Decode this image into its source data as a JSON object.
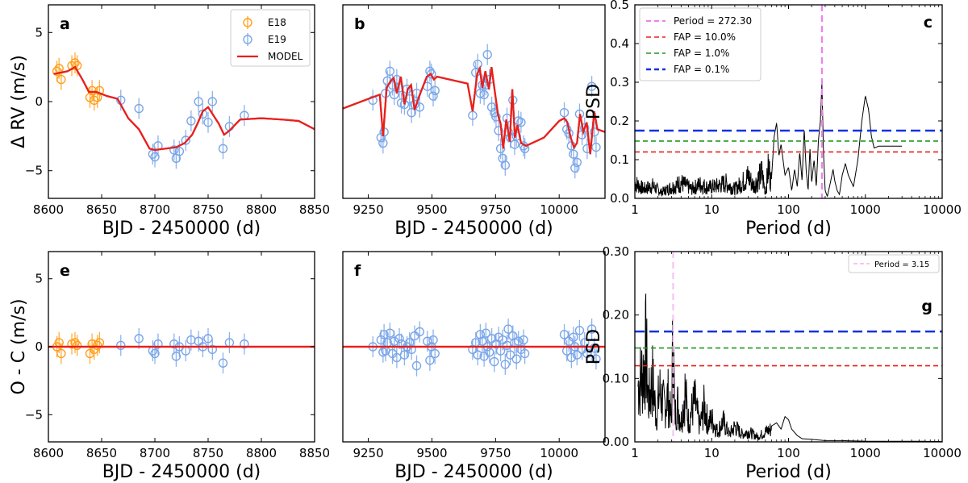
{
  "chart_data": [
    {
      "id": "a",
      "type": "scatter",
      "panel_label": "a",
      "xlabel": "BJD - 2450000 (d)",
      "ylabel": "Δ RV (m/s)",
      "xlim": [
        8600,
        8850
      ],
      "ylim": [
        -7,
        7
      ],
      "xticks": [
        8600,
        8650,
        8700,
        8750,
        8800,
        8850
      ],
      "yticks": [
        -5,
        0,
        5
      ],
      "legend_position": "top-right",
      "series": [
        {
          "name": "E18",
          "color": "#ff9f1c",
          "x": [
            8608,
            8610,
            8612,
            8622,
            8625,
            8627,
            8639,
            8641,
            8643,
            8646,
            8648
          ],
          "y": [
            2.2,
            2.4,
            1.6,
            2.6,
            2.8,
            2.6,
            0.3,
            0.8,
            0.1,
            0.3,
            0.8
          ]
        },
        {
          "name": "E19",
          "color": "#7aa6e8",
          "x": [
            8668,
            8685,
            8698,
            8700,
            8703,
            8718,
            8720,
            8723,
            8729,
            8734,
            8741,
            8745,
            8750,
            8754,
            8764,
            8770,
            8784
          ],
          "y": [
            0.1,
            -0.5,
            -3.8,
            -4.0,
            -3.2,
            -3.5,
            -4.1,
            -3.6,
            -2.8,
            -1.4,
            0.0,
            -0.9,
            -1.5,
            0.0,
            -3.4,
            -1.8,
            -1.0
          ]
        },
        {
          "name": "MODEL",
          "color": "#e8201c",
          "x": [
            8605,
            8612,
            8618,
            8625,
            8632,
            8638,
            8645,
            8655,
            8665,
            8675,
            8685,
            8695,
            8700,
            8710,
            8720,
            8728,
            8735,
            8740,
            8745,
            8750,
            8755,
            8760,
            8765,
            8770,
            8780,
            8800,
            8820,
            8835,
            8850
          ],
          "y": [
            2.0,
            2.1,
            2.2,
            2.5,
            1.6,
            0.7,
            0.7,
            0.4,
            0.2,
            -1.2,
            -2.0,
            -3.4,
            -3.5,
            -3.4,
            -3.3,
            -3.0,
            -2.4,
            -1.6,
            -0.7,
            -0.4,
            -1.0,
            -1.6,
            -2.4,
            -2.1,
            -1.3,
            -1.2,
            -1.3,
            -1.4,
            -2.0
          ]
        }
      ]
    },
    {
      "id": "b",
      "type": "scatter",
      "panel_label": "b",
      "xlabel": "BJD - 2450000 (d)",
      "ylabel": "",
      "xlim": [
        9150,
        10180
      ],
      "ylim": [
        -7,
        7
      ],
      "xticks": [
        9250,
        9500,
        9750,
        10000
      ],
      "series": [
        {
          "name": "E19",
          "color": "#7aa6e8",
          "x": [
            9268,
            9300,
            9308,
            9312,
            9318,
            9325,
            9335,
            9345,
            9352,
            9362,
            9372,
            9380,
            9392,
            9402,
            9412,
            9420,
            9432,
            9440,
            9452,
            9482,
            9492,
            9498,
            9505,
            9512,
            9660,
            9672,
            9680,
            9690,
            9698,
            9705,
            9712,
            9718,
            9726,
            9735,
            9745,
            9752,
            9762,
            9770,
            9778,
            9788,
            9795,
            9800,
            9808,
            9818,
            9825,
            9832,
            9840,
            9850,
            9860,
            9865,
            10020,
            10030,
            10038,
            10048,
            10056,
            10062,
            10070,
            10080,
            10090,
            10100,
            10110,
            10128,
            10138,
            10145
          ],
          "y": [
            0.1,
            -2.6,
            -3.0,
            -2.2,
            0.6,
            1.5,
            2.2,
            1.2,
            0.5,
            1.6,
            1.0,
            -0.1,
            -0.2,
            0.9,
            0.2,
            -0.8,
            -0.2,
            0.6,
            -0.4,
            1.1,
            2.2,
            2.0,
            0.4,
            0.8,
            -1.0,
            2.1,
            2.7,
            0.6,
            1.2,
            0.5,
            1.2,
            3.4,
            1.6,
            -0.4,
            -0.8,
            -1.1,
            -2.1,
            -3.4,
            -4.1,
            -4.6,
            -1.2,
            -2.2,
            -2.6,
            0.1,
            -3.1,
            -2.5,
            -1.4,
            -1.5,
            -3.2,
            -3.4,
            -0.8,
            -2.0,
            -2.3,
            -3.2,
            -3.8,
            -4.8,
            -4.4,
            -0.9,
            -2.4,
            -1.9,
            -3.4,
            1.1,
            -2.2,
            -3.3
          ]
        },
        {
          "name": "MODEL",
          "color": "#e8201c",
          "x": [
            9150,
            9250,
            9295,
            9308,
            9322,
            9338,
            9350,
            9362,
            9378,
            9392,
            9405,
            9418,
            9432,
            9450,
            9480,
            9495,
            9508,
            9520,
            9640,
            9660,
            9678,
            9688,
            9698,
            9710,
            9724,
            9734,
            9748,
            9760,
            9770,
            9780,
            9792,
            9806,
            9816,
            9826,
            9836,
            9850,
            9870,
            9940,
            10000,
            10020,
            10032,
            10045,
            10058,
            10070,
            10082,
            10095,
            10108,
            10122,
            10138,
            10150,
            10180
          ],
          "y": [
            -0.5,
            0.2,
            0.5,
            -2.5,
            1.0,
            1.5,
            1.7,
            0.6,
            1.8,
            -0.2,
            0.9,
            1.2,
            -0.6,
            0.4,
            1.8,
            2.0,
            1.6,
            1.8,
            1.3,
            -0.7,
            2.0,
            2.4,
            1.0,
            2.2,
            0.9,
            2.5,
            0.6,
            -1.0,
            -1.6,
            -3.4,
            -1.3,
            -2.9,
            0.9,
            -2.6,
            -1.7,
            -3.0,
            -3.2,
            -2.6,
            -1.4,
            -1.2,
            -1.5,
            -2.6,
            -3.3,
            -3.0,
            -0.9,
            -2.2,
            -1.5,
            -3.8,
            -0.7,
            -2.0,
            -2.2
          ]
        }
      ]
    },
    {
      "id": "c",
      "type": "line",
      "panel_label": "c",
      "xlabel": "Period (d)",
      "ylabel": "PSD",
      "xscale": "log",
      "xlim": [
        1,
        10000
      ],
      "ylim": [
        0,
        0.5
      ],
      "xticks": [
        1,
        10,
        100,
        1000,
        10000
      ],
      "yticks": [
        0.0,
        0.1,
        0.2,
        0.3,
        0.4,
        0.5
      ],
      "legend_position": "top-left",
      "legend": [
        {
          "label": "Period = 272.30",
          "color": "#ee82ee"
        },
        {
          "label": "FAP = 10.0%",
          "color": "#e8201c"
        },
        {
          "label": "FAP =  1.0%",
          "color": "#1f9a1f"
        },
        {
          "label": "FAP =  0.1%",
          "color": "#1432dc"
        }
      ],
      "vline_period": 272.3,
      "fap_levels": [
        {
          "fap": "10.0%",
          "value": 0.12,
          "color": "#e8201c"
        },
        {
          "fap": "1.0%",
          "value": 0.148,
          "color": "#1f9a1f"
        },
        {
          "fap": "0.1%",
          "value": 0.175,
          "color": "#1432dc"
        }
      ],
      "spectrum": {
        "x": [
          1,
          1.3,
          1.7,
          2.2,
          3,
          4,
          5.5,
          7,
          9,
          12,
          15,
          20,
          25,
          30,
          35,
          40,
          45,
          50,
          55,
          60,
          65,
          70,
          75,
          80,
          90,
          100,
          110,
          120,
          130,
          140,
          150,
          160,
          170,
          180,
          190,
          200,
          215,
          230,
          245,
          260,
          272,
          285,
          300,
          320,
          350,
          380,
          400,
          430,
          460,
          500,
          550,
          600,
          700,
          800,
          900,
          1000,
          1100,
          1200,
          1300,
          1500,
          2000,
          3000
        ],
        "y": [
          0.05,
          0.03,
          0.04,
          0.02,
          0.035,
          0.05,
          0.03,
          0.045,
          0.035,
          0.04,
          0.05,
          0.03,
          0.05,
          0.07,
          0.04,
          0.06,
          0.08,
          0.02,
          0.1,
          0.05,
          0.16,
          0.195,
          0.11,
          0.14,
          0.06,
          0.08,
          0.02,
          0.075,
          0.03,
          0.12,
          0.045,
          0.18,
          0.07,
          0.02,
          0.13,
          0.04,
          0.1,
          0.03,
          0.15,
          0.2,
          0.3,
          0.12,
          0.02,
          0.005,
          0.04,
          0.075,
          0.045,
          0.02,
          0.01,
          0.06,
          0.09,
          0.06,
          0.03,
          0.1,
          0.2,
          0.265,
          0.23,
          0.16,
          0.13,
          0.135,
          0.135,
          0.135
        ]
      }
    },
    {
      "id": "e",
      "type": "scatter",
      "panel_label": "e",
      "xlabel": "BJD - 2450000 (d)",
      "ylabel": "O - C (m/s)",
      "xlim": [
        8600,
        8850
      ],
      "ylim": [
        -7,
        7
      ],
      "xticks": [
        8600,
        8650,
        8700,
        8750,
        8800,
        8850
      ],
      "yticks": [
        -5,
        0,
        5
      ],
      "series": [
        {
          "name": "E18",
          "color": "#ff9f1c",
          "x": [
            8608,
            8610,
            8612,
            8622,
            8625,
            8627,
            8639,
            8641,
            8643,
            8646,
            8648
          ],
          "y": [
            0.0,
            0.3,
            -0.5,
            0.2,
            0.3,
            0.1,
            -0.5,
            0.2,
            -0.2,
            0.1,
            0.3
          ]
        },
        {
          "name": "E19",
          "color": "#7aa6e8",
          "x": [
            8668,
            8685,
            8698,
            8700,
            8703,
            8718,
            8720,
            8723,
            8729,
            8734,
            8741,
            8745,
            8750,
            8754,
            8764,
            8770,
            8784
          ],
          "y": [
            0.1,
            0.6,
            -0.3,
            -0.5,
            0.2,
            0.2,
            -0.7,
            0.0,
            -0.3,
            0.5,
            0.4,
            0.0,
            0.6,
            -0.2,
            -1.2,
            0.3,
            0.2
          ]
        },
        {
          "name": "MODEL",
          "color": "#e8201c",
          "x": [
            8600,
            8850
          ],
          "y": [
            0,
            0
          ]
        }
      ]
    },
    {
      "id": "f",
      "type": "scatter",
      "panel_label": "f",
      "xlabel": "BJD - 2450000 (d)",
      "ylabel": "",
      "xlim": [
        9150,
        10180
      ],
      "ylim": [
        -7,
        7
      ],
      "xticks": [
        9250,
        9500,
        9750,
        10000
      ],
      "series": [
        {
          "name": "E19",
          "color": "#7aa6e8",
          "x": [
            9268,
            9300,
            9308,
            9312,
            9318,
            9325,
            9335,
            9345,
            9352,
            9362,
            9372,
            9380,
            9392,
            9402,
            9412,
            9420,
            9432,
            9440,
            9452,
            9482,
            9492,
            9498,
            9505,
            9512,
            9660,
            9672,
            9680,
            9690,
            9698,
            9705,
            9712,
            9718,
            9726,
            9735,
            9745,
            9752,
            9762,
            9770,
            9778,
            9788,
            9795,
            9800,
            9808,
            9818,
            9825,
            9832,
            9840,
            9850,
            9860,
            9865,
            10020,
            10030,
            10038,
            10048,
            10056,
            10062,
            10070,
            10080,
            10090,
            10100,
            10110,
            10128,
            10138,
            10145
          ],
          "y": [
            0.0,
            0.5,
            -0.4,
            0.9,
            -0.3,
            0.3,
            1.0,
            -0.5,
            0.4,
            -0.8,
            0.6,
            0.2,
            -0.6,
            0.0,
            0.3,
            -0.2,
            0.8,
            -1.4,
            1.1,
            0.4,
            -1.0,
            0.0,
            0.5,
            -0.5,
            -0.2,
            0.3,
            -0.6,
            0.9,
            0.4,
            -0.7,
            1.0,
            0.0,
            -0.4,
            0.6,
            -1.1,
            0.2,
            0.7,
            -0.3,
            0.5,
            -1.3,
            0.1,
            1.3,
            -0.6,
            0.8,
            0.3,
            -0.9,
            0.4,
            -0.2,
            0.5,
            -0.5,
            0.9,
            -0.3,
            0.4,
            -0.8,
            0.7,
            0.0,
            -0.6,
            1.2,
            -0.2,
            0.3,
            -0.5,
            1.3,
            -0.1,
            -0.9
          ]
        },
        {
          "name": "MODEL",
          "color": "#e8201c",
          "x": [
            9150,
            10180
          ],
          "y": [
            0,
            0
          ]
        }
      ]
    },
    {
      "id": "g",
      "type": "line",
      "panel_label": "g",
      "xlabel": "Period (d)",
      "ylabel": "PSD",
      "xscale": "log",
      "xlim": [
        1,
        10000
      ],
      "ylim": [
        0,
        0.3
      ],
      "xticks": [
        1,
        10,
        100,
        1000,
        10000
      ],
      "yticks": [
        0.0,
        0.1,
        0.2,
        0.3
      ],
      "ytick_labels": [
        "0.00",
        "0.10",
        "0.20",
        "0.30"
      ],
      "legend_position": "top-right",
      "legend": [
        {
          "label": "Period = 3.15",
          "color": "#f4c6f0"
        }
      ],
      "vline_period": 3.15,
      "fap_levels": [
        {
          "fap": "10.0%",
          "value": 0.12,
          "color": "#e8201c"
        },
        {
          "fap": "1.0%",
          "value": 0.148,
          "color": "#1f9a1f"
        },
        {
          "fap": "0.1%",
          "value": 0.174,
          "color": "#1432dc"
        }
      ],
      "spectrum": {
        "x": [
          1.1,
          1.3,
          1.4,
          1.5,
          1.7,
          1.9,
          2.1,
          2.4,
          2.7,
          3.0,
          3.15,
          3.3,
          3.6,
          4.0,
          4.5,
          5,
          6,
          7,
          8,
          9,
          10,
          12,
          14,
          17,
          20,
          25,
          30,
          40,
          50,
          60,
          70,
          80,
          90,
          100,
          110,
          130,
          150,
          200,
          300,
          500,
          1000,
          2000,
          5000,
          10000
        ],
        "y": [
          0.11,
          0.14,
          0.182,
          0.08,
          0.12,
          0.05,
          0.1,
          0.07,
          0.09,
          0.04,
          0.23,
          0.05,
          0.075,
          0.04,
          0.1,
          0.04,
          0.08,
          0.03,
          0.07,
          0.035,
          0.045,
          0.02,
          0.04,
          0.015,
          0.03,
          0.015,
          0.02,
          0.01,
          0.02,
          0.025,
          0.03,
          0.02,
          0.04,
          0.035,
          0.02,
          0.01,
          0.005,
          0.004,
          0.002,
          0.002,
          0.001,
          0.001,
          0.001,
          0.0005
        ]
      }
    }
  ]
}
